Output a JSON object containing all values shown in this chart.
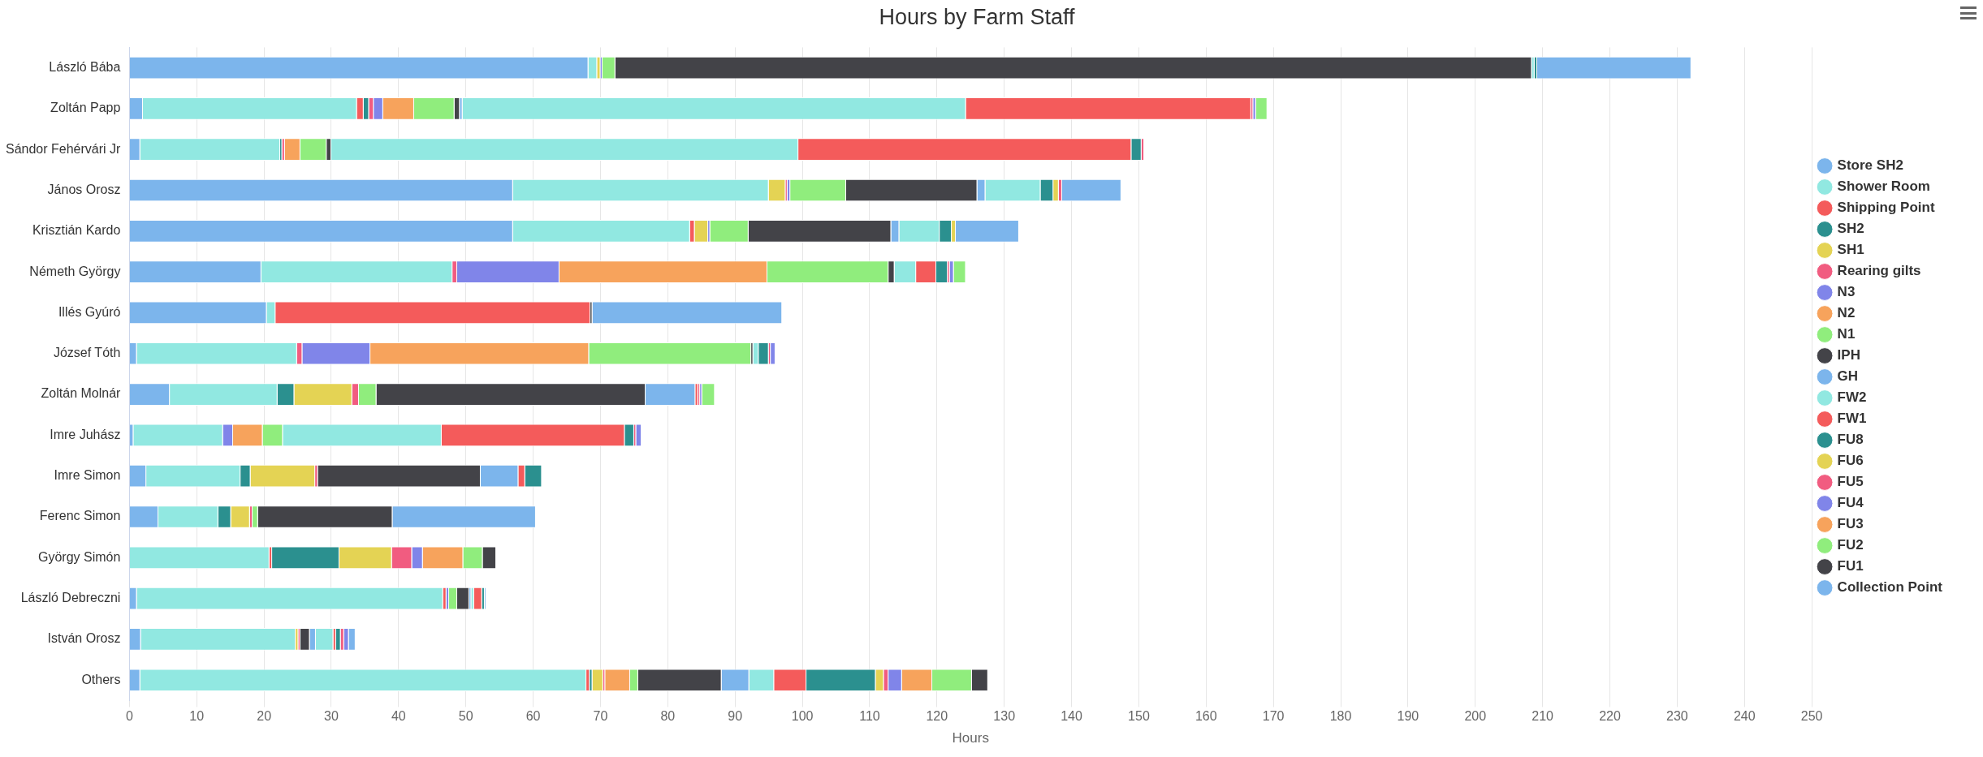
{
  "chart_data": {
    "type": "bar",
    "orientation": "horizontal",
    "stacked": true,
    "title": "Hours by Farm Staff",
    "xlabel": "Hours",
    "categories": [
      "László Bába",
      "Zoltán Papp",
      "Sándor Fehérvári Jr",
      "János Orosz",
      "Krisztián Kardo",
      "Németh György",
      "Illés Gyúró",
      "József Tóth",
      "Zoltán Molnár",
      "Imre Juhász",
      "Imre Simon",
      "Ferenc Simon",
      "György Simón",
      "László Debreczni",
      "István Orosz",
      "Others"
    ],
    "series": [
      {
        "name": "Store SH2",
        "color": "#7cb5ec",
        "values": [
          68.2,
          2.0,
          1.6,
          57.0,
          57.0,
          19.6,
          20.4,
          1.1,
          6.0,
          0.6,
          2.5,
          4.3,
          null,
          1.1,
          1.7,
          1.6
        ]
      },
      {
        "name": "Shower Room",
        "color": "#91e8e1",
        "values": [
          1.3,
          31.8,
          20.8,
          38.0,
          26.3,
          28.4,
          1.3,
          23.8,
          16.0,
          13.3,
          14.0,
          8.9,
          20.8,
          45.5,
          23.0,
          66.3
        ]
      },
      {
        "name": "Shipping Point",
        "color": "#f45b5b",
        "values": [
          null,
          1.0,
          null,
          null,
          0.7,
          null,
          46.8,
          null,
          null,
          null,
          null,
          null,
          0.4,
          0.5,
          null,
          0.5
        ]
      },
      {
        "name": "SH2",
        "color": "#2b908f",
        "values": [
          null,
          0.8,
          0.3,
          null,
          null,
          null,
          null,
          null,
          2.5,
          null,
          1.5,
          1.9,
          10.0,
          null,
          null,
          0.4
        ]
      },
      {
        "name": "SH1",
        "color": "#e4d354",
        "values": [
          0.5,
          null,
          null,
          2.5,
          2.0,
          null,
          null,
          null,
          8.6,
          null,
          9.6,
          2.8,
          7.8,
          null,
          0.4,
          1.6
        ]
      },
      {
        "name": "Rearing gilts",
        "color": "#f15c80",
        "values": [
          null,
          0.7,
          0.4,
          0.3,
          null,
          0.7,
          null,
          0.8,
          1.0,
          null,
          0.4,
          0.4,
          3.0,
          null,
          0.3,
          0.3
        ]
      },
      {
        "name": "N3",
        "color": "#8085e9",
        "values": [
          0.3,
          1.4,
          null,
          0.4,
          0.3,
          15.2,
          null,
          10.1,
          null,
          1.5,
          null,
          null,
          1.6,
          0.4,
          null,
          null
        ]
      },
      {
        "name": "N2",
        "color": "#f7a35c",
        "values": [
          null,
          4.6,
          2.3,
          null,
          null,
          30.9,
          null,
          32.5,
          null,
          4.4,
          null,
          null,
          6.0,
          null,
          null,
          3.7
        ]
      },
      {
        "name": "N1",
        "color": "#90ed7d",
        "values": [
          1.9,
          6.0,
          3.9,
          8.3,
          5.7,
          18.0,
          null,
          24.1,
          2.6,
          3.0,
          null,
          0.8,
          2.9,
          1.2,
          null,
          1.2
        ]
      },
      {
        "name": "IPH",
        "color": "#434348",
        "values": [
          136.2,
          0.8,
          0.7,
          19.5,
          21.2,
          0.9,
          0.3,
          0.3,
          40.0,
          null,
          24.2,
          20.0,
          2.0,
          1.8,
          1.4,
          12.4
        ]
      },
      {
        "name": "GH",
        "color": "#7cb5ec",
        "values": [
          null,
          0.4,
          null,
          1.2,
          1.2,
          null,
          28.2,
          null,
          7.4,
          null,
          5.6,
          21.3,
          null,
          0.3,
          0.9,
          4.1
        ]
      },
      {
        "name": "FW2",
        "color": "#91e8e1",
        "values": [
          0.4,
          74.8,
          69.4,
          8.2,
          6.0,
          3.2,
          null,
          0.8,
          null,
          23.6,
          null,
          null,
          null,
          0.4,
          2.6,
          3.7
        ]
      },
      {
        "name": "FW1",
        "color": "#f45b5b",
        "values": [
          null,
          42.4,
          49.5,
          null,
          null,
          3.0,
          null,
          null,
          0.4,
          27.2,
          1.0,
          null,
          null,
          1.2,
          0.4,
          4.8
        ]
      },
      {
        "name": "FU8",
        "color": "#2b908f",
        "values": [
          0.4,
          null,
          1.5,
          1.9,
          1.8,
          1.7,
          null,
          1.5,
          null,
          1.4,
          2.5,
          null,
          null,
          0.4,
          0.7,
          10.3
        ]
      },
      {
        "name": "FU6",
        "color": "#e4d354",
        "values": [
          null,
          null,
          null,
          0.8,
          0.6,
          null,
          null,
          null,
          null,
          null,
          null,
          null,
          null,
          null,
          null,
          1.2
        ]
      },
      {
        "name": "FU5",
        "color": "#f15c80",
        "values": [
          null,
          0.3,
          0.4,
          0.5,
          null,
          0.3,
          null,
          0.3,
          0.3,
          0.3,
          null,
          null,
          null,
          null,
          0.5,
          0.7
        ]
      },
      {
        "name": "FU4",
        "color": "#8085e9",
        "values": [
          null,
          0.4,
          null,
          null,
          null,
          0.6,
          null,
          0.7,
          0.3,
          0.8,
          null,
          null,
          null,
          null,
          0.7,
          2.0
        ]
      },
      {
        "name": "FU3",
        "color": "#f7a35c",
        "values": [
          null,
          null,
          null,
          null,
          null,
          null,
          null,
          null,
          null,
          null,
          null,
          null,
          null,
          null,
          null,
          4.5
        ]
      },
      {
        "name": "FU2",
        "color": "#90ed7d",
        "values": [
          null,
          1.7,
          null,
          null,
          null,
          1.8,
          null,
          null,
          1.9,
          null,
          null,
          null,
          null,
          null,
          null,
          5.9
        ]
      },
      {
        "name": "FU1",
        "color": "#434348",
        "values": [
          null,
          null,
          null,
          null,
          null,
          null,
          null,
          null,
          null,
          null,
          null,
          null,
          null,
          null,
          null,
          2.4
        ]
      },
      {
        "name": "Collection Point",
        "color": "#7cb5ec",
        "values": [
          22.9,
          null,
          null,
          8.8,
          9.4,
          null,
          null,
          null,
          null,
          null,
          null,
          null,
          null,
          0.2,
          1.0,
          null
        ]
      }
    ],
    "xlim": [
      0,
      250
    ],
    "xticks": [
      0,
      10,
      20,
      30,
      40,
      50,
      60,
      70,
      80,
      90,
      100,
      110,
      120,
      130,
      140,
      150,
      160,
      170,
      180,
      190,
      200,
      210,
      220,
      230,
      240,
      250
    ],
    "grid": "x",
    "legend": "right",
    "marker": "circle"
  }
}
